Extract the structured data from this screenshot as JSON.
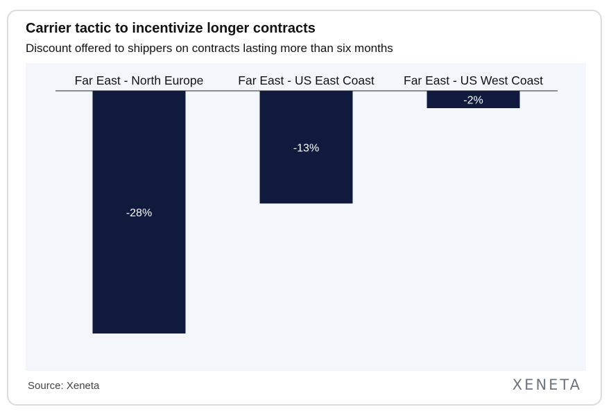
{
  "title": "Carrier tactic to incentivize longer contracts",
  "subtitle": "Discount offered to shippers on contracts lasting more than six months",
  "source": "Source: Xeneta",
  "logo_text": "XENETA",
  "colors": {
    "bar": "#0f1a3c",
    "plot_bg": "#f3f7fc",
    "label_on_bar": "#ffffff"
  },
  "chart_data": {
    "type": "bar",
    "categories": [
      "Far East - North Europe",
      "Far East - US East Coast",
      "Far East - US West Coast"
    ],
    "values": [
      -28,
      -13,
      -2
    ],
    "data_labels": [
      "-28%",
      "-13%",
      "-2%"
    ],
    "unit": "%",
    "ylim": [
      -32,
      0
    ],
    "category_axis_position": "top",
    "grid": false,
    "legend": "none"
  }
}
